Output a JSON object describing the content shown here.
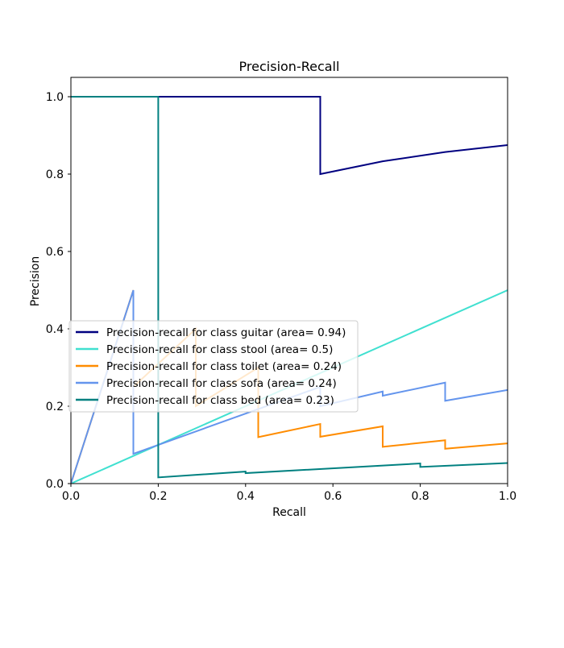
{
  "chart_data": {
    "type": "line",
    "title": "Precision-Recall",
    "xlabel": "Recall",
    "ylabel": "Precision",
    "xlim": [
      0.0,
      1.0
    ],
    "ylim": [
      0.0,
      1.05
    ],
    "xticks": [
      0.0,
      0.2,
      0.4,
      0.6,
      0.8,
      1.0
    ],
    "yticks": [
      0.0,
      0.2,
      0.4,
      0.6,
      0.8,
      1.0
    ],
    "xtick_labels": [
      "0.0",
      "0.2",
      "0.4",
      "0.6",
      "0.8",
      "1.0"
    ],
    "ytick_labels": [
      "0.0",
      "0.2",
      "0.4",
      "0.6",
      "0.8",
      "1.0"
    ],
    "grid": false,
    "legend_placement": "center-left",
    "series": [
      {
        "name": "Precision-recall for class guitar (area= 0.94)",
        "color": "#000080",
        "x": [
          0.0,
          0.571,
          0.571,
          0.714,
          0.857,
          1.0
        ],
        "y": [
          1.0,
          1.0,
          0.8,
          0.833,
          0.857,
          0.875
        ]
      },
      {
        "name": "Precision-recall for class stool (area= 0.5)",
        "color": "#40e0d0",
        "x": [
          0.0,
          1.0
        ],
        "y": [
          0.0,
          0.5
        ]
      },
      {
        "name": "Precision-recall for class toilet (area= 0.24)",
        "color": "#ff8c00",
        "x": [
          0.0,
          0.143,
          0.143,
          0.286,
          0.286,
          0.429,
          0.429,
          0.571,
          0.571,
          0.714,
          0.714,
          0.857,
          0.857,
          1.0
        ],
        "y": [
          0.0,
          0.5,
          0.25,
          0.4,
          0.2,
          0.3,
          0.12,
          0.154,
          0.121,
          0.148,
          0.095,
          0.112,
          0.09,
          0.104
        ]
      },
      {
        "name": "Precision-recall for class sofa (area= 0.24)",
        "color": "#6495ed",
        "x": [
          0.0,
          0.143,
          0.143,
          0.571,
          0.571,
          0.714,
          0.714,
          0.857,
          0.857,
          1.0
        ],
        "y": [
          0.0,
          0.5,
          0.077,
          0.25,
          0.2,
          0.238,
          0.227,
          0.261,
          0.214,
          0.242
        ]
      },
      {
        "name": "Precision-recall for class bed (area= 0.23)",
        "color": "#008080",
        "x": [
          0.0,
          0.2,
          0.2,
          0.4,
          0.4,
          0.8,
          0.8,
          1.0
        ],
        "y": [
          1.0,
          1.0,
          0.016,
          0.031,
          0.027,
          0.052,
          0.043,
          0.053
        ]
      }
    ]
  }
}
